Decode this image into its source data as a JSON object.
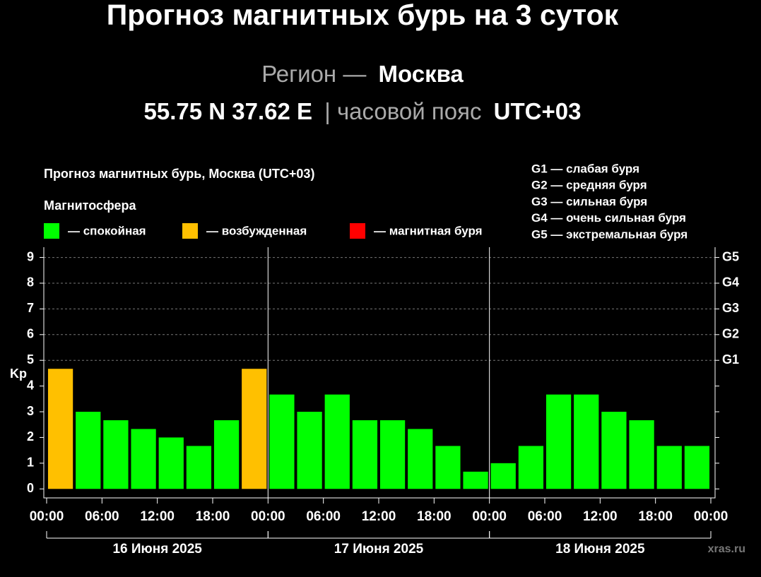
{
  "header": {
    "title": "Прогноз магнитных бурь на 3 суток",
    "region_label": "Регион —",
    "region": "Москва",
    "coords": "55.75 N 37.62 E",
    "tz_label": "| часовой пояс",
    "tz": "UTC+03"
  },
  "chart_data": {
    "type": "bar",
    "title": "Прогноз магнитных бурь, Москва (UTC+03)",
    "legend_title": "Магнитосфера",
    "legend": [
      {
        "name": "— спокойная",
        "color": "#00ff00"
      },
      {
        "name": "— возбужденная",
        "color": "#ffc000"
      },
      {
        "name": "— магнитная буря",
        "color": "#ff0000"
      }
    ],
    "scale_notes": [
      "G1 — слабая буря",
      "G2 — средняя буря",
      "G3 — сильная буря",
      "G4 — очень сильная буря",
      "G5 — экстремальная буря"
    ],
    "ylabel": "Kp",
    "x": [
      1.5,
      4.5,
      7.5,
      10.5,
      13.5,
      16.5,
      19.5,
      22.5,
      25.5,
      28.5,
      31.5,
      34.5,
      37.5,
      40.5,
      43.5,
      46.5,
      49.5,
      52.5,
      55.5,
      58.5,
      61.5,
      64.5,
      67.5,
      70.5
    ],
    "values": [
      4.67,
      3,
      2.67,
      2.33,
      2,
      1.67,
      2.67,
      4.67,
      3.67,
      3,
      3.67,
      2.67,
      2.67,
      2.33,
      1.67,
      0.67,
      1,
      1.67,
      3.67,
      3.67,
      3,
      2.67,
      1.67,
      1.67
    ],
    "colors": [
      "#ffc000",
      "#00ff00",
      "#00ff00",
      "#00ff00",
      "#00ff00",
      "#00ff00",
      "#00ff00",
      "#ffc000",
      "#00ff00",
      "#00ff00",
      "#00ff00",
      "#00ff00",
      "#00ff00",
      "#00ff00",
      "#00ff00",
      "#00ff00",
      "#00ff00",
      "#00ff00",
      "#00ff00",
      "#00ff00",
      "#00ff00",
      "#00ff00",
      "#00ff00",
      "#00ff00"
    ],
    "xlim": [
      0,
      72
    ],
    "xticks": [
      {
        "value": 0,
        "label": "00:00"
      },
      {
        "value": 6,
        "label": "06:00"
      },
      {
        "value": 12,
        "label": "12:00"
      },
      {
        "value": 18,
        "label": "18:00"
      },
      {
        "value": 24,
        "label": "00:00"
      },
      {
        "value": 30,
        "label": "06:00"
      },
      {
        "value": 36,
        "label": "12:00"
      },
      {
        "value": 42,
        "label": "18:00"
      },
      {
        "value": 48,
        "label": "00:00"
      },
      {
        "value": 54,
        "label": "06:00"
      },
      {
        "value": 60,
        "label": "12:00"
      },
      {
        "value": 66,
        "label": "18:00"
      },
      {
        "value": 72,
        "label": "00:00"
      }
    ],
    "days": [
      {
        "label": "16 Июня 2025",
        "start": 0,
        "end": 24
      },
      {
        "label": "17 Июня 2025",
        "start": 24,
        "end": 48
      },
      {
        "label": "18 Июня 2025",
        "start": 48,
        "end": 72
      }
    ],
    "ylim": [
      -0.35,
      9.4
    ],
    "yticks": [
      0,
      1,
      2,
      3,
      4,
      5,
      6,
      7,
      8,
      9
    ],
    "y2lim": [
      -0.35,
      9.4
    ],
    "y2ticks": [
      {
        "value": 5,
        "label": "G1"
      },
      {
        "value": 6,
        "label": "G2"
      },
      {
        "value": 7,
        "label": "G3"
      },
      {
        "value": 8,
        "label": "G4"
      },
      {
        "value": 9,
        "label": "G5"
      }
    ],
    "grid": true,
    "source": "xras.ru"
  }
}
